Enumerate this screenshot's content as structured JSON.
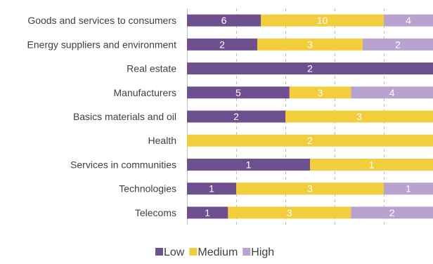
{
  "chart_data": {
    "type": "bar",
    "orientation": "horizontal",
    "stacked": "percent",
    "categories": [
      "Goods and services to consumers",
      "Energy suppliers and environment",
      "Real estate",
      "Manufacturers",
      "Basics materials and oil",
      "Health",
      "Services in communities",
      "Technologies",
      "Telecoms"
    ],
    "series": [
      {
        "name": "Low",
        "color": "#6e4f8f",
        "values": [
          6,
          2,
          2,
          5,
          2,
          0,
          1,
          1,
          1
        ]
      },
      {
        "name": "Medium",
        "color": "#f2cd3c",
        "values": [
          10,
          3,
          0,
          3,
          3,
          2,
          1,
          3,
          3
        ]
      },
      {
        "name": "High",
        "color": "#b8a2cf",
        "values": [
          4,
          2,
          0,
          4,
          0,
          0,
          0,
          1,
          2
        ]
      }
    ],
    "xlim": [
      0,
      1
    ],
    "grid": true,
    "legend": "bottom"
  }
}
